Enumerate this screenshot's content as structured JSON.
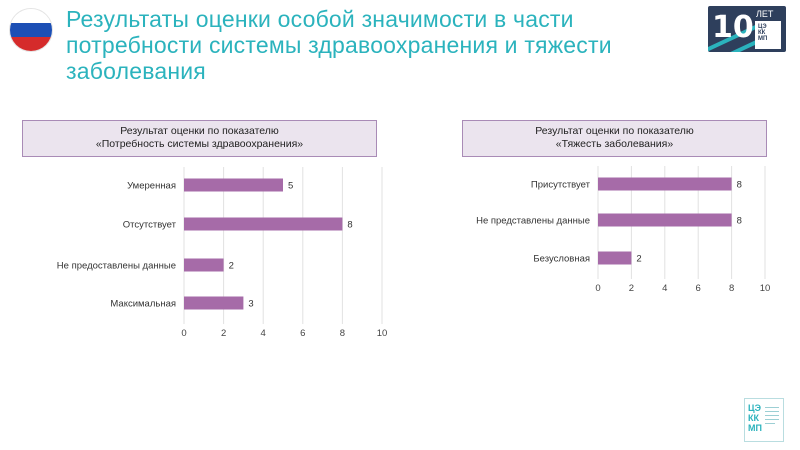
{
  "header": {
    "title": "Результаты оценки особой значимости в части потребности системы здравоохранения и тяжести заболевания"
  },
  "logo": {
    "number": "10",
    "label": "ЛЕТ",
    "abbr": "ЦЭ КК МП"
  },
  "footer_logo": {
    "abbr": "ЦЭ КК МП"
  },
  "colors": {
    "title": "#2bb3bd",
    "bar": "#a66ba8",
    "header_bg": "#ebe4ee",
    "header_border": "#a98bb6",
    "flag": [
      "#ffffff",
      "#1c4fb5",
      "#d52b2b"
    ]
  },
  "chart_data": [
    {
      "type": "bar",
      "orientation": "horizontal",
      "header": "Результат оценки по показателю\n«Потребность системы здравоохранения»",
      "categories": [
        "Умеренная",
        "Отсутствует",
        "Не предоставлены данные",
        "Максимальная"
      ],
      "values": [
        5,
        8,
        2,
        3
      ],
      "xlim": [
        0,
        10
      ],
      "xticks": [
        "0",
        "2",
        "4",
        "6",
        "8",
        "10"
      ],
      "grid": true,
      "data_labels": true
    },
    {
      "type": "bar",
      "orientation": "horizontal",
      "header": "Результат оценки по показателю\n«Тяжесть заболевания»",
      "categories": [
        "Присутствует",
        "Не представлены данные",
        "Безусловная"
      ],
      "values": [
        8,
        8,
        2
      ],
      "xlim": [
        0,
        10
      ],
      "xticks": [
        "0",
        "2",
        "4",
        "6",
        "8",
        "10"
      ],
      "grid": true,
      "data_labels": true
    }
  ]
}
